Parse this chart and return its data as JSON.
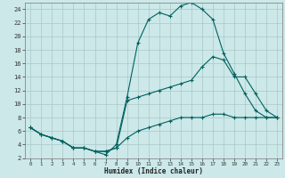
{
  "title": "",
  "xlabel": "Humidex (Indice chaleur)",
  "background_color": "#cce8e8",
  "grid_color": "#aac8c8",
  "line_color": "#006060",
  "xlim": [
    -0.5,
    23.5
  ],
  "ylim": [
    2,
    25
  ],
  "xticks": [
    0,
    1,
    2,
    3,
    4,
    5,
    6,
    7,
    8,
    9,
    10,
    11,
    12,
    13,
    14,
    15,
    16,
    17,
    18,
    19,
    20,
    21,
    22,
    23
  ],
  "yticks": [
    2,
    4,
    6,
    8,
    10,
    12,
    14,
    16,
    18,
    20,
    22,
    24
  ],
  "line1_x": [
    0,
    1,
    2,
    3,
    4,
    5,
    6,
    7,
    8,
    9,
    10,
    11,
    12,
    13,
    14,
    15,
    16,
    17,
    18,
    19,
    20,
    21,
    22,
    23
  ],
  "line1_y": [
    6.5,
    5.5,
    5,
    4.5,
    3.5,
    3.5,
    3,
    2.5,
    4,
    11,
    19,
    22.5,
    23.5,
    23,
    24.5,
    25,
    24,
    22.5,
    17.5,
    14.5,
    11.5,
    9,
    8,
    8
  ],
  "line2_x": [
    0,
    1,
    2,
    3,
    4,
    5,
    6,
    7,
    8,
    9,
    10,
    11,
    12,
    13,
    14,
    15,
    16,
    17,
    18,
    19,
    20,
    21,
    22,
    23
  ],
  "line2_y": [
    6.5,
    5.5,
    5,
    4.5,
    3.5,
    3.5,
    3,
    3,
    3.5,
    10.5,
    11,
    11.5,
    12,
    12.5,
    13,
    13.5,
    15.5,
    17,
    16.5,
    14,
    14,
    11.5,
    9,
    8
  ],
  "line3_x": [
    0,
    1,
    2,
    3,
    4,
    5,
    6,
    7,
    8,
    9,
    10,
    11,
    12,
    13,
    14,
    15,
    16,
    17,
    18,
    19,
    20,
    21,
    22,
    23
  ],
  "line3_y": [
    6.5,
    5.5,
    5,
    4.5,
    3.5,
    3.5,
    3,
    3,
    3.5,
    5,
    6,
    6.5,
    7,
    7.5,
    8,
    8,
    8,
    8.5,
    8.5,
    8,
    8,
    8,
    8,
    8
  ]
}
